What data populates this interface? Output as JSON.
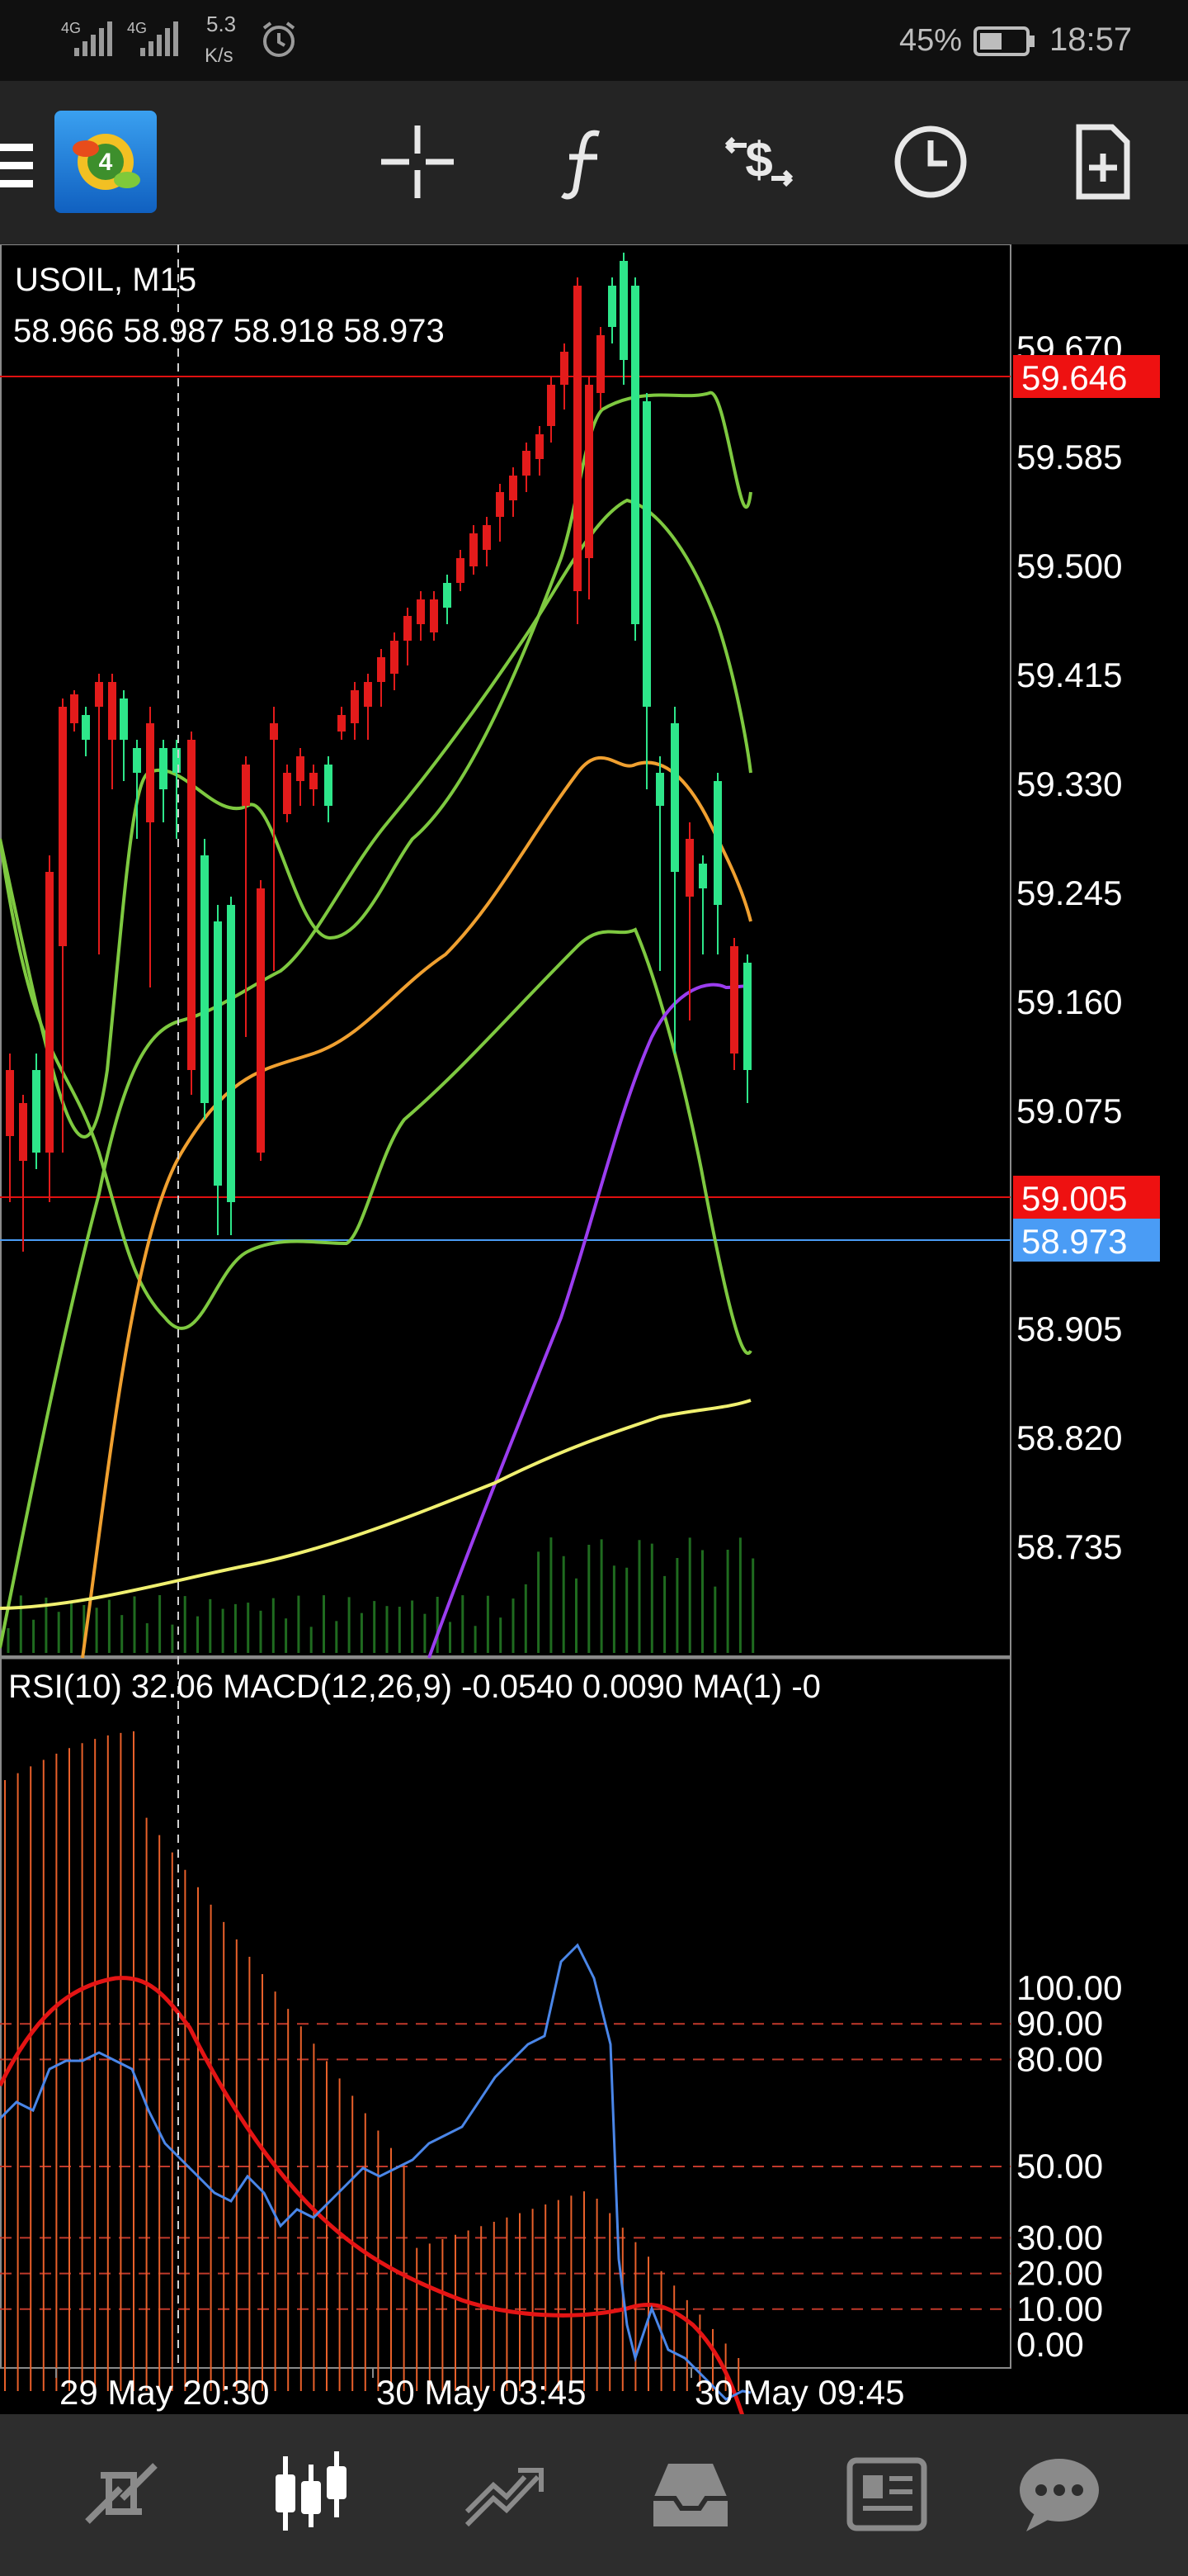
{
  "status_bar": {
    "network1": "4G",
    "network2": "4G",
    "speed_value": "5.3",
    "speed_unit": "K/s",
    "battery": "45%",
    "time": "18:57"
  },
  "toolbar": {
    "icons": [
      "menu-icon",
      "metatrader-logo-icon",
      "crosshair-icon",
      "indicator-f-icon",
      "trade-icon",
      "history-clock-icon",
      "new-order-icon"
    ]
  },
  "chart": {
    "symbol_timeframe": "USOIL, M15",
    "ohlc": "58.966 58.987 58.918 58.973",
    "indicator_header": "RSI(10) 32.06 MACD(12,26,9) -0.0540 0.0090 MA(1) -0",
    "high_line_label": "59.646",
    "level_line_label": "59.005",
    "bid_label": "58.973",
    "bid_color": "#4a9cf5",
    "line_color_red": "#e01010",
    "bull_color": "#2ee68a",
    "bear_color": "#e31b1b",
    "price_ticks": [
      "59.670",
      "59.585",
      "59.500",
      "59.415",
      "59.330",
      "59.245",
      "59.160",
      "59.075",
      "58.905",
      "58.820",
      "58.735"
    ],
    "osc_ticks": [
      "100.00",
      "90.00",
      "80.00",
      "50.00",
      "30.00",
      "20.00",
      "10.00",
      "0.00"
    ],
    "time_labels": [
      "29 May 20:30",
      "30 May 03:45",
      "30 May 09:45"
    ]
  },
  "bottom_nav": {
    "items": [
      "quotes-icon",
      "chart-icon",
      "trade-icon",
      "history-icon",
      "news-icon",
      "messages-icon"
    ],
    "active_index": 1,
    "active_color": "#ffffff",
    "inactive_color": "#8a8a8a"
  }
}
